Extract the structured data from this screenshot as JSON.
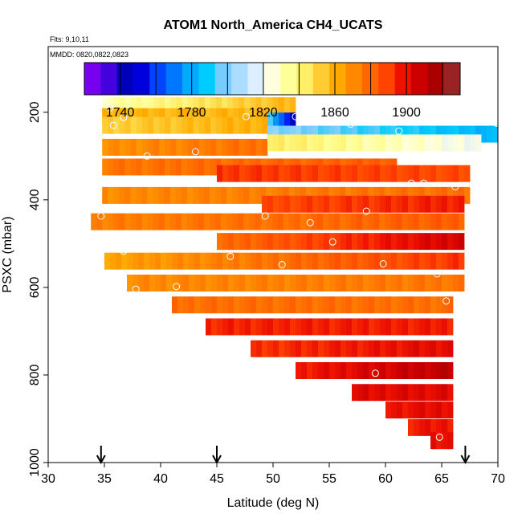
{
  "chart_data": {
    "type": "heatmap",
    "title": "ATOM1 North_America CH4_UCATS",
    "subtitle_flights": "Flts: 9,10,11",
    "subtitle_dates": "MMDD: 0820,0822,0823",
    "xlabel": "Latitude (deg N)",
    "ylabel": "PSXC (mbar)",
    "xlim": [
      30,
      70
    ],
    "ylim": [
      1000,
      50
    ],
    "x_ticks": [
      30,
      35,
      40,
      45,
      50,
      55,
      60,
      65,
      70
    ],
    "y_ticks": [
      200,
      400,
      600,
      800,
      1000
    ],
    "colorbar": {
      "range": [
        1720,
        1930
      ],
      "ticks": [
        1740,
        1780,
        1820,
        1860,
        1900
      ],
      "colors": [
        "#7700ee",
        "#4400dd",
        "#0000bb",
        "#0000dd",
        "#0044ff",
        "#0077ff",
        "#00aaff",
        "#00ccff",
        "#77ccff",
        "#aaddff",
        "#ddeeff",
        "#ffffdd",
        "#ffff99",
        "#ffee66",
        "#ffcc33",
        "#ffaa00",
        "#ff8800",
        "#ff6600",
        "#ff4400",
        "#ee1100",
        "#cc0000",
        "#aa0000",
        "#992222"
      ]
    },
    "curtain": [
      {
        "p": 185,
        "lat": [
          34.8,
          52
        ],
        "v1": 1830,
        "v2": 1860
      },
      {
        "p": 210,
        "lat": [
          34.8,
          49.5
        ],
        "v1": 1860,
        "v2": 1860
      },
      {
        "p": 220,
        "lat": [
          49.5,
          52
        ],
        "v1": 1790,
        "v2": 1740
      },
      {
        "p": 230,
        "lat": [
          34.8,
          49.5
        ],
        "v1": 1852,
        "v2": 1862
      },
      {
        "p": 250,
        "lat": [
          49.5,
          70
        ],
        "v1": 1800,
        "v2": 1780
      },
      {
        "p": 280,
        "lat": [
          34.8,
          49.5
        ],
        "v1": 1870,
        "v2": 1880
      },
      {
        "p": 270,
        "lat": [
          49.5,
          68.5
        ],
        "v1": 1845,
        "v2": 1820
      },
      {
        "p": 325,
        "lat": [
          34.8,
          61
        ],
        "v1": 1878,
        "v2": 1885
      },
      {
        "p": 340,
        "lat": [
          45,
          67.5
        ],
        "v1": 1895,
        "v2": 1890
      },
      {
        "p": 390,
        "lat": [
          34.8,
          67.5
        ],
        "v1": 1872,
        "v2": 1880
      },
      {
        "p": 410,
        "lat": [
          49,
          67
        ],
        "v1": 1890,
        "v2": 1900
      },
      {
        "p": 450,
        "lat": [
          33.8,
          67
        ],
        "v1": 1875,
        "v2": 1885
      },
      {
        "p": 495,
        "lat": [
          45,
          67
        ],
        "v1": 1880,
        "v2": 1910
      },
      {
        "p": 540,
        "lat": [
          35,
          67
        ],
        "v1": 1865,
        "v2": 1895
      },
      {
        "p": 590,
        "lat": [
          37,
          67
        ],
        "v1": 1872,
        "v2": 1878
      },
      {
        "p": 640,
        "lat": [
          41,
          66
        ],
        "v1": 1880,
        "v2": 1880
      },
      {
        "p": 690,
        "lat": [
          44,
          66
        ],
        "v1": 1898,
        "v2": 1900
      },
      {
        "p": 740,
        "lat": [
          48,
          66
        ],
        "v1": 1895,
        "v2": 1905
      },
      {
        "p": 790,
        "lat": [
          52,
          66
        ],
        "v1": 1900,
        "v2": 1915
      },
      {
        "p": 840,
        "lat": [
          57,
          66
        ],
        "v1": 1905,
        "v2": 1905
      },
      {
        "p": 880,
        "lat": [
          60,
          66
        ],
        "v1": 1902,
        "v2": 1905
      },
      {
        "p": 920,
        "lat": [
          62,
          66
        ],
        "v1": 1900,
        "v2": 1902
      },
      {
        "p": 950,
        "lat": [
          64,
          66
        ],
        "v1": 1902,
        "v2": 1902
      }
    ],
    "sample_points": [
      {
        "lat": 35.5,
        "p": 190
      },
      {
        "lat": 35.8,
        "p": 230
      },
      {
        "lat": 36.7,
        "p": 212
      },
      {
        "lat": 38.8,
        "p": 300
      },
      {
        "lat": 43.1,
        "p": 290
      },
      {
        "lat": 47.6,
        "p": 210
      },
      {
        "lat": 52.0,
        "p": 210
      },
      {
        "lat": 56.9,
        "p": 227
      },
      {
        "lat": 61.2,
        "p": 243
      },
      {
        "lat": 69.9,
        "p": 225
      },
      {
        "lat": 62.3,
        "p": 362
      },
      {
        "lat": 63.4,
        "p": 362
      },
      {
        "lat": 66.2,
        "p": 370
      },
      {
        "lat": 58.3,
        "p": 426
      },
      {
        "lat": 34.7,
        "p": 437
      },
      {
        "lat": 49.3,
        "p": 437
      },
      {
        "lat": 53.3,
        "p": 452
      },
      {
        "lat": 55.3,
        "p": 496
      },
      {
        "lat": 36.7,
        "p": 517
      },
      {
        "lat": 40.0,
        "p": 513
      },
      {
        "lat": 46.2,
        "p": 529
      },
      {
        "lat": 50.8,
        "p": 548
      },
      {
        "lat": 59.8,
        "p": 546
      },
      {
        "lat": 64.6,
        "p": 569
      },
      {
        "lat": 37.8,
        "p": 604
      },
      {
        "lat": 41.4,
        "p": 598
      },
      {
        "lat": 65.4,
        "p": 631
      },
      {
        "lat": 59.1,
        "p": 796
      },
      {
        "lat": 64.8,
        "p": 942
      }
    ],
    "arrows_lat": [
      34.7,
      45,
      67.1
    ]
  }
}
